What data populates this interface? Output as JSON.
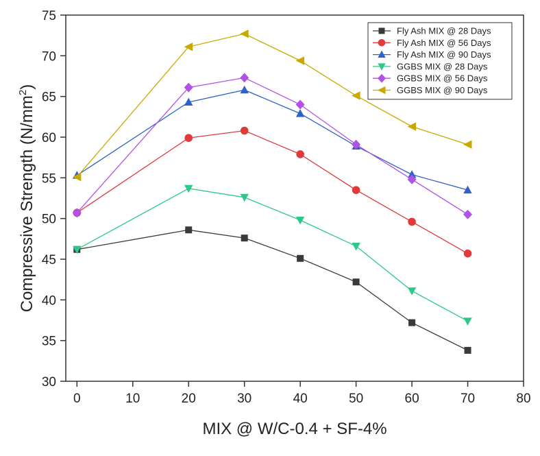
{
  "chart_data": {
    "type": "line",
    "xlabel": "MIX @ W/C-0.4 + SF-4%",
    "ylabel": "Compressive Strength (N/mm",
    "ylabel_sup": "2",
    "ylabel_close": ")",
    "xlim": [
      -2,
      80
    ],
    "ylim": [
      30,
      75
    ],
    "xticks": [
      0,
      10,
      20,
      30,
      40,
      50,
      60,
      70,
      80
    ],
    "yticks": [
      30,
      35,
      40,
      45,
      50,
      55,
      60,
      65,
      70,
      75
    ],
    "grid": false,
    "legend_position": "top-right",
    "x": [
      0,
      20,
      30,
      40,
      50,
      60,
      70
    ],
    "series": [
      {
        "name": "Fly Ash MIX @ 28 Days",
        "marker": "square",
        "color": "#3a3a3a",
        "values": [
          46.2,
          48.6,
          47.6,
          45.1,
          42.2,
          37.2,
          33.8
        ]
      },
      {
        "name": "Fly Ash MIX @ 56 Days",
        "marker": "circle",
        "color": "#e03a3a",
        "values": [
          50.7,
          59.9,
          60.8,
          57.9,
          53.5,
          49.6,
          45.7
        ]
      },
      {
        "name": "Fly Ash MIX @ 90 Days",
        "marker": "triangle-up",
        "color": "#2f62c6",
        "values": [
          55.3,
          64.3,
          65.8,
          62.9,
          58.9,
          55.4,
          53.5
        ]
      },
      {
        "name": "GGBS MIX @ 28 Days",
        "marker": "triangle-down",
        "color": "#2ec98a",
        "values": [
          46.2,
          53.7,
          52.6,
          49.8,
          46.6,
          41.1,
          37.4
        ]
      },
      {
        "name": "GGBS MIX @ 56 Days",
        "marker": "diamond",
        "color": "#b052e8",
        "values": [
          50.7,
          66.1,
          67.3,
          64.0,
          59.1,
          54.8,
          50.5
        ]
      },
      {
        "name": "GGBS MIX @ 90 Days",
        "marker": "triangle-left",
        "color": "#c9a900",
        "values": [
          55.1,
          71.1,
          72.7,
          69.4,
          65.1,
          61.3,
          59.1
        ]
      }
    ]
  }
}
